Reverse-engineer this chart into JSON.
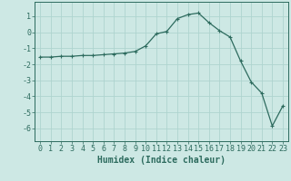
{
  "x": [
    0,
    1,
    2,
    3,
    4,
    5,
    6,
    7,
    8,
    9,
    10,
    11,
    12,
    13,
    14,
    15,
    16,
    17,
    18,
    19,
    20,
    21,
    22,
    23
  ],
  "y": [
    -1.55,
    -1.55,
    -1.5,
    -1.5,
    -1.45,
    -1.45,
    -1.4,
    -1.35,
    -1.3,
    -1.2,
    -0.85,
    -0.1,
    0.05,
    0.85,
    1.1,
    1.2,
    0.6,
    0.1,
    -0.3,
    -1.8,
    -3.1,
    -3.8,
    -5.85,
    -4.6
  ],
  "line_color": "#2d6b5e",
  "marker": "+",
  "marker_size": 3,
  "marker_lw": 0.8,
  "line_width": 0.9,
  "bg_color": "#cde8e4",
  "grid_color": "#aed4cf",
  "xlabel": "Humidex (Indice chaleur)",
  "ylim": [
    -6.8,
    1.9
  ],
  "xlim": [
    -0.5,
    23.5
  ],
  "yticks": [
    1,
    0,
    -1,
    -2,
    -3,
    -4,
    -5,
    -6
  ],
  "ytick_labels": [
    "1",
    "0",
    "-1",
    "-2",
    "-3",
    "-4",
    "-5",
    "-6"
  ],
  "xticks": [
    0,
    1,
    2,
    3,
    4,
    5,
    6,
    7,
    8,
    9,
    10,
    11,
    12,
    13,
    14,
    15,
    16,
    17,
    18,
    19,
    20,
    21,
    22,
    23
  ],
  "tick_color": "#2d6b5e",
  "label_color": "#2d6b5e",
  "spine_color": "#2d6b5e",
  "font_size": 6,
  "xlabel_font_size": 7
}
